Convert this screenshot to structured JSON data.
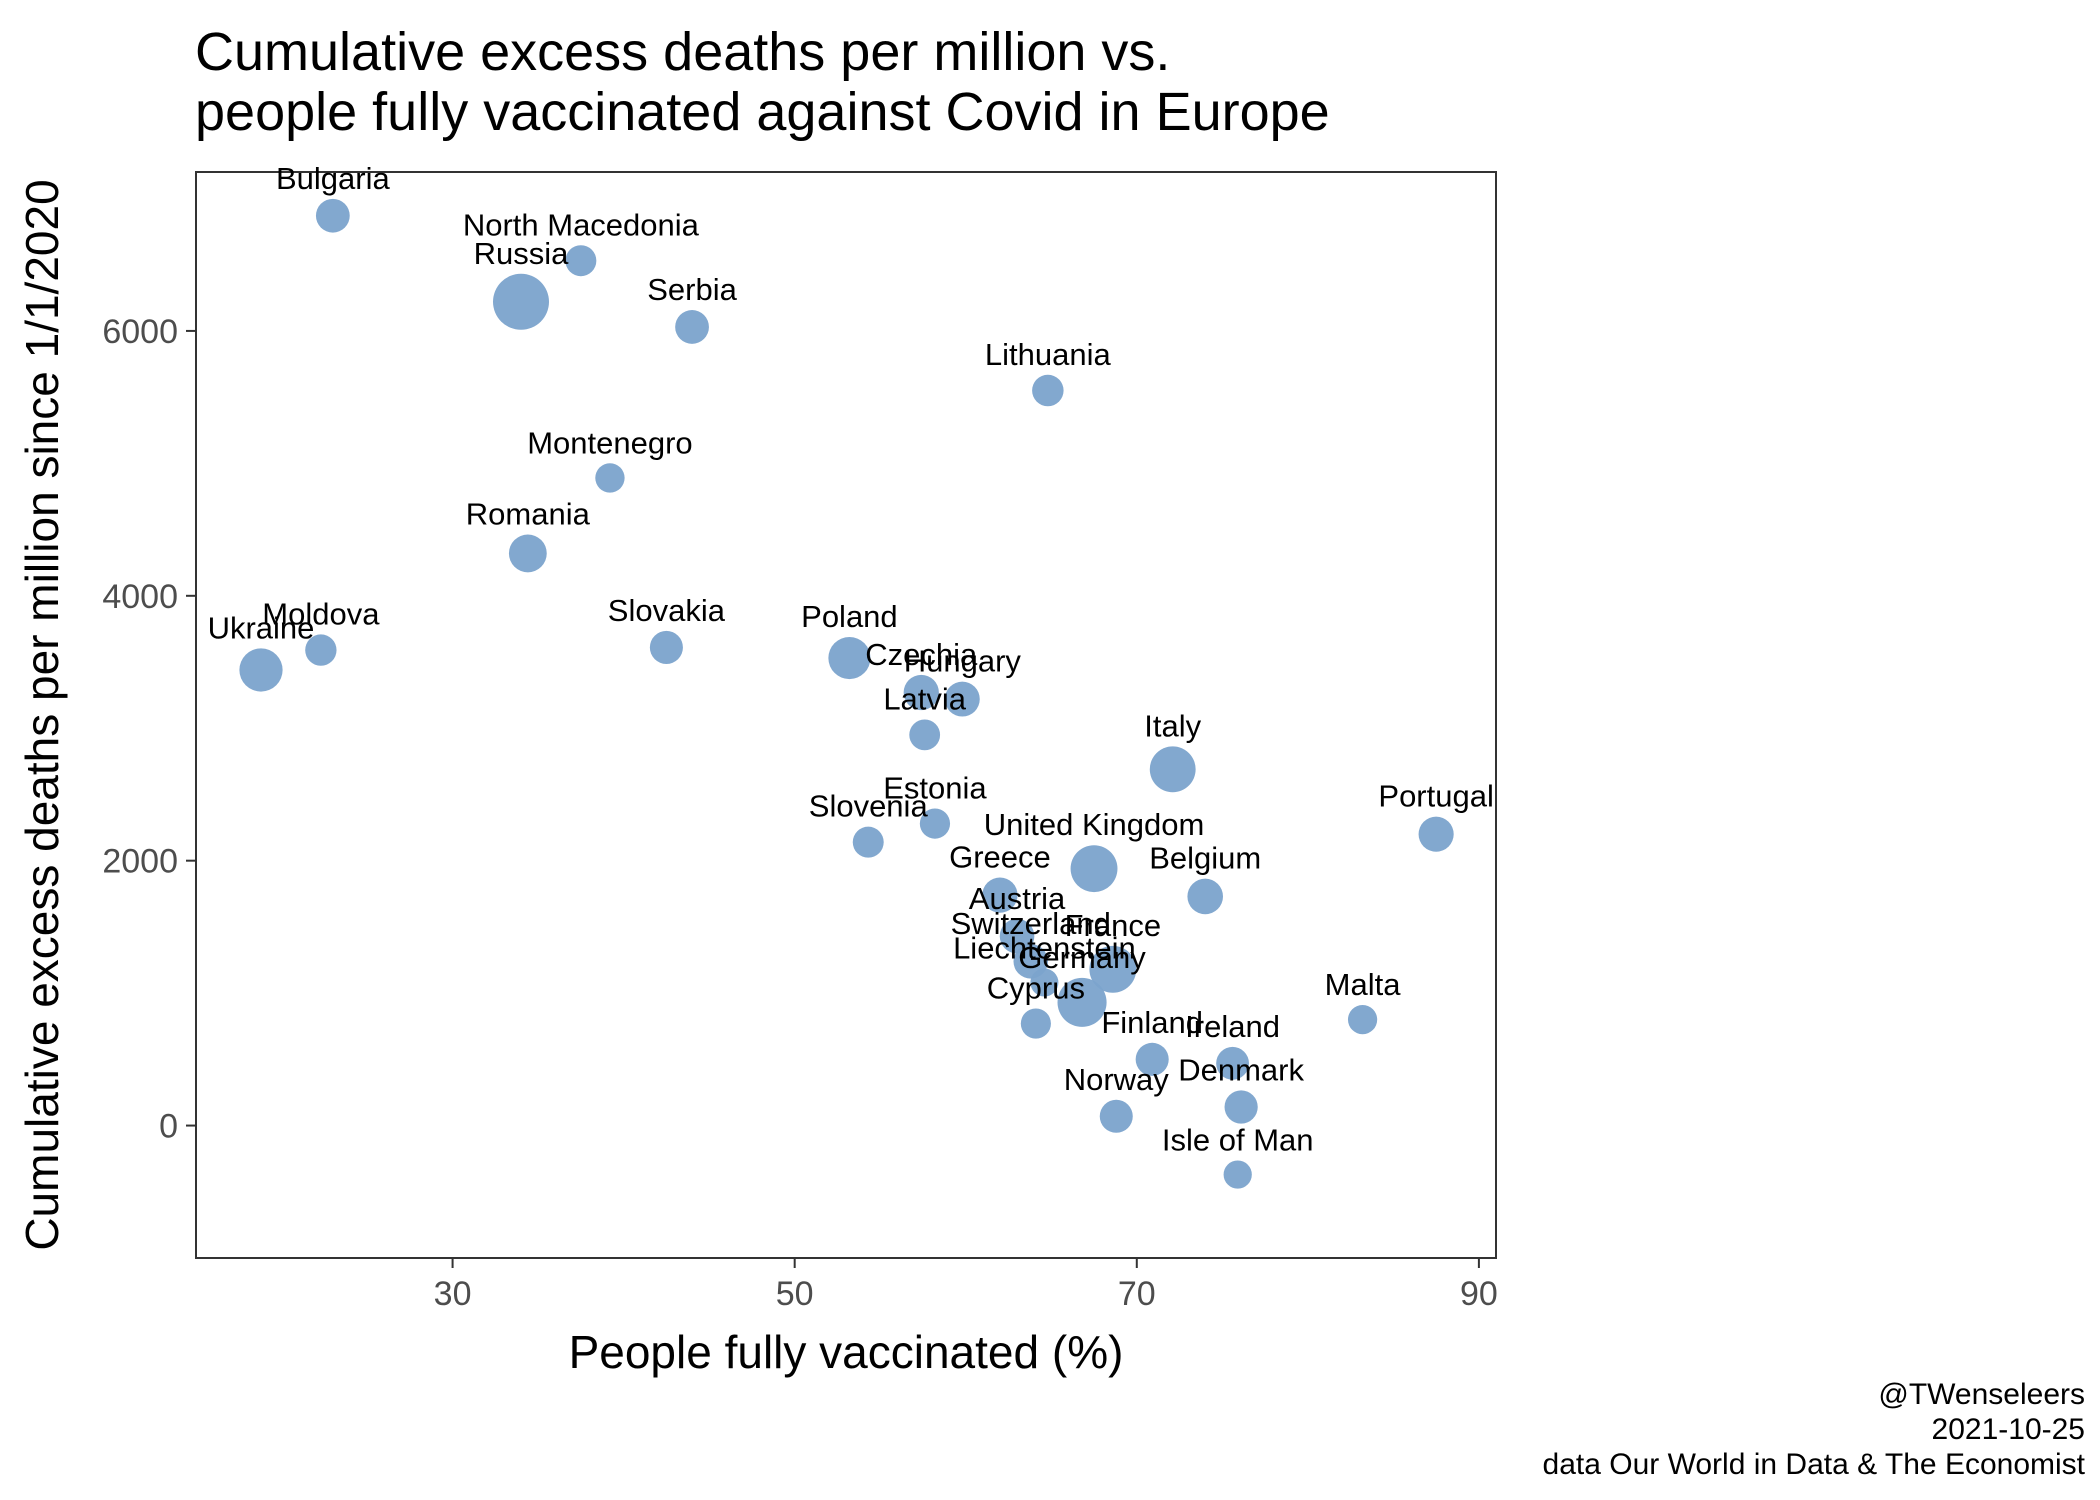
{
  "chart_data": {
    "type": "scatter",
    "title_lines": [
      "Cumulative excess deaths per million vs.",
      "people fully vaccinated against Covid in Europe"
    ],
    "xlabel": "People fully vaccinated (%)",
    "ylabel": "Cumulative excess deaths per million since 1/1/2020",
    "xlim": [
      15,
      91
    ],
    "ylim": [
      -1000,
      7200
    ],
    "x_ticks": [
      30,
      50,
      70,
      90
    ],
    "y_ticks": [
      0,
      2000,
      4000,
      6000
    ],
    "grid": false,
    "point_color": "#7ba3cc",
    "label_color": "#000000",
    "size_encoding": "population",
    "points": [
      {
        "label": "Bulgaria",
        "x": 23.0,
        "y": 6870,
        "size": 7.0
      },
      {
        "label": "North Macedonia",
        "x": 37.5,
        "y": 6530,
        "size": 2.1
      },
      {
        "label": "Russia",
        "x": 34.0,
        "y": 6220,
        "size": 145
      },
      {
        "label": "Serbia",
        "x": 44.0,
        "y": 6030,
        "size": 7.0
      },
      {
        "label": "Lithuania",
        "x": 64.8,
        "y": 5550,
        "size": 2.8
      },
      {
        "label": "Montenegro",
        "x": 39.2,
        "y": 4890,
        "size": 0.6
      },
      {
        "label": "Romania",
        "x": 34.4,
        "y": 4320,
        "size": 19
      },
      {
        "label": "Moldova",
        "x": 22.3,
        "y": 3590,
        "size": 2.6
      },
      {
        "label": "Ukraine",
        "x": 18.8,
        "y": 3440,
        "size": 44
      },
      {
        "label": "Slovakia",
        "x": 42.5,
        "y": 3610,
        "size": 5.5
      },
      {
        "label": "Poland",
        "x": 53.2,
        "y": 3530,
        "size": 38
      },
      {
        "label": "Czechia",
        "x": 57.4,
        "y": 3270,
        "size": 10.7
      },
      {
        "label": "Hungary",
        "x": 59.8,
        "y": 3220,
        "size": 9.7
      },
      {
        "label": "Latvia",
        "x": 57.6,
        "y": 2950,
        "size": 1.9
      },
      {
        "label": "Italy",
        "x": 72.1,
        "y": 2690,
        "size": 60
      },
      {
        "label": "Estonia",
        "x": 58.2,
        "y": 2280,
        "size": 1.3
      },
      {
        "label": "Slovenia",
        "x": 54.3,
        "y": 2140,
        "size": 2.1
      },
      {
        "label": "Portugal",
        "x": 87.5,
        "y": 2200,
        "size": 10.3
      },
      {
        "label": "United Kingdom",
        "x": 67.5,
        "y": 1940,
        "size": 67
      },
      {
        "label": "Greece",
        "x": 62.0,
        "y": 1740,
        "size": 10.7
      },
      {
        "label": "Belgium",
        "x": 74.0,
        "y": 1730,
        "size": 11.6
      },
      {
        "label": "Austria",
        "x": 63.0,
        "y": 1430,
        "size": 9.0
      },
      {
        "label": "Switzerland",
        "x": 63.8,
        "y": 1240,
        "size": 8.7
      },
      {
        "label": "France",
        "x": 68.6,
        "y": 1180,
        "size": 67
      },
      {
        "label": "Liechtenstein",
        "x": 64.6,
        "y": 1080,
        "size": 0.04
      },
      {
        "label": "Germany",
        "x": 66.8,
        "y": 930,
        "size": 83
      },
      {
        "label": "Cyprus",
        "x": 64.1,
        "y": 770,
        "size": 1.2
      },
      {
        "label": "Malta",
        "x": 83.2,
        "y": 800,
        "size": 0.5
      },
      {
        "label": "Finland",
        "x": 70.9,
        "y": 500,
        "size": 5.5
      },
      {
        "label": "Ireland",
        "x": 75.6,
        "y": 470,
        "size": 5.0
      },
      {
        "label": "Denmark",
        "x": 76.1,
        "y": 140,
        "size": 5.8
      },
      {
        "label": "Norway",
        "x": 68.8,
        "y": 70,
        "size": 5.4
      },
      {
        "label": "Isle of Man",
        "x": 75.9,
        "y": -370,
        "size": 0.085
      }
    ]
  },
  "caption": {
    "author": "@TWenseleers",
    "date": "2021-10-25",
    "source": "data Our World in Data & The Economist"
  }
}
